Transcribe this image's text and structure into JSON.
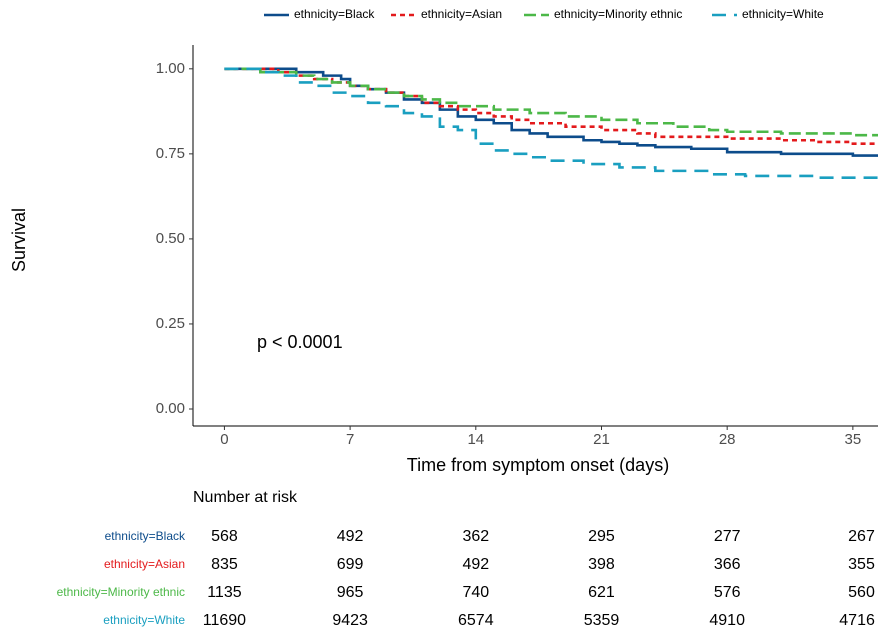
{
  "chart_data": {
    "type": "step",
    "xlabel": "Time from symptom onset (days)",
    "ylabel": "Survival",
    "xlim": [
      -1.75,
      36.4
    ],
    "ylim": [
      -0.05,
      1.07
    ],
    "xticks": [
      0,
      7,
      14,
      21,
      28,
      35
    ],
    "yticks": [
      {
        "value": 0,
        "label": "0.00"
      },
      {
        "value": 0.25,
        "label": "0.25"
      },
      {
        "value": 0.5,
        "label": "0.50"
      },
      {
        "value": 0.75,
        "label": "0.75"
      },
      {
        "value": 1,
        "label": "1.00"
      }
    ],
    "legend": "top",
    "annotation": "p < 0.0001",
    "series": [
      {
        "name": "ethnicity=Black",
        "color": "#0d4c8b",
        "dash": "solid",
        "x": [
          0,
          4,
          5.5,
          6.5,
          7,
          8,
          9,
          10,
          11,
          12,
          13,
          14,
          15,
          16,
          17,
          18,
          20,
          21,
          22,
          23,
          24,
          26,
          28,
          31,
          35
        ],
        "values": [
          1,
          0.99,
          0.98,
          0.97,
          0.95,
          0.94,
          0.93,
          0.91,
          0.9,
          0.88,
          0.86,
          0.85,
          0.84,
          0.82,
          0.81,
          0.8,
          0.79,
          0.785,
          0.78,
          0.775,
          0.77,
          0.765,
          0.755,
          0.75,
          0.745
        ]
      },
      {
        "name": "ethnicity=Asian",
        "color": "#e31a1c",
        "dash": "dotted",
        "x": [
          0,
          3,
          4,
          5,
          6,
          7,
          8,
          9,
          10,
          11,
          12,
          13,
          14,
          15,
          16,
          17,
          19,
          21,
          23,
          24,
          28,
          31,
          33,
          35
        ],
        "values": [
          1,
          0.99,
          0.98,
          0.97,
          0.96,
          0.95,
          0.94,
          0.93,
          0.92,
          0.9,
          0.89,
          0.88,
          0.87,
          0.86,
          0.85,
          0.84,
          0.83,
          0.82,
          0.81,
          0.8,
          0.795,
          0.79,
          0.785,
          0.78
        ]
      },
      {
        "name": "ethnicity=Minority ethnic",
        "color": "#4cb848",
        "dash": "dashed",
        "x": [
          0,
          2,
          4,
          5,
          6,
          7,
          8,
          9,
          10,
          11,
          12,
          13,
          15,
          17,
          19,
          21,
          23,
          25,
          27,
          28,
          31,
          35
        ],
        "values": [
          1,
          0.99,
          0.98,
          0.97,
          0.96,
          0.95,
          0.94,
          0.93,
          0.92,
          0.91,
          0.9,
          0.89,
          0.88,
          0.87,
          0.86,
          0.85,
          0.84,
          0.83,
          0.82,
          0.815,
          0.81,
          0.805
        ]
      },
      {
        "name": "ethnicity=White",
        "color": "#1a9fc0",
        "dash": "longdash",
        "x": [
          0,
          2,
          3,
          4,
          5,
          6,
          7,
          8,
          9,
          10,
          11,
          12,
          13,
          14,
          15,
          16,
          17,
          18,
          20,
          22,
          24,
          27,
          29,
          33
        ],
        "values": [
          1,
          0.99,
          0.98,
          0.96,
          0.95,
          0.93,
          0.92,
          0.9,
          0.89,
          0.87,
          0.86,
          0.83,
          0.82,
          0.78,
          0.76,
          0.75,
          0.74,
          0.73,
          0.72,
          0.71,
          0.7,
          0.69,
          0.685,
          0.68
        ]
      }
    ],
    "risk_table": {
      "title": "Number at risk",
      "rows": [
        {
          "name": "ethnicity=Black",
          "color": "#0d4c8b",
          "values": [
            568,
            492,
            362,
            295,
            277,
            267
          ]
        },
        {
          "name": "ethnicity=Asian",
          "color": "#e31a1c",
          "values": [
            835,
            699,
            492,
            398,
            366,
            355
          ]
        },
        {
          "name": "ethnicity=Minority ethnic",
          "color": "#4cb848",
          "values": [
            1135,
            965,
            740,
            621,
            576,
            560
          ]
        },
        {
          "name": "ethnicity=White",
          "color": "#1a9fc0",
          "values": [
            11690,
            9423,
            6574,
            5359,
            4910,
            4716
          ]
        }
      ]
    }
  }
}
